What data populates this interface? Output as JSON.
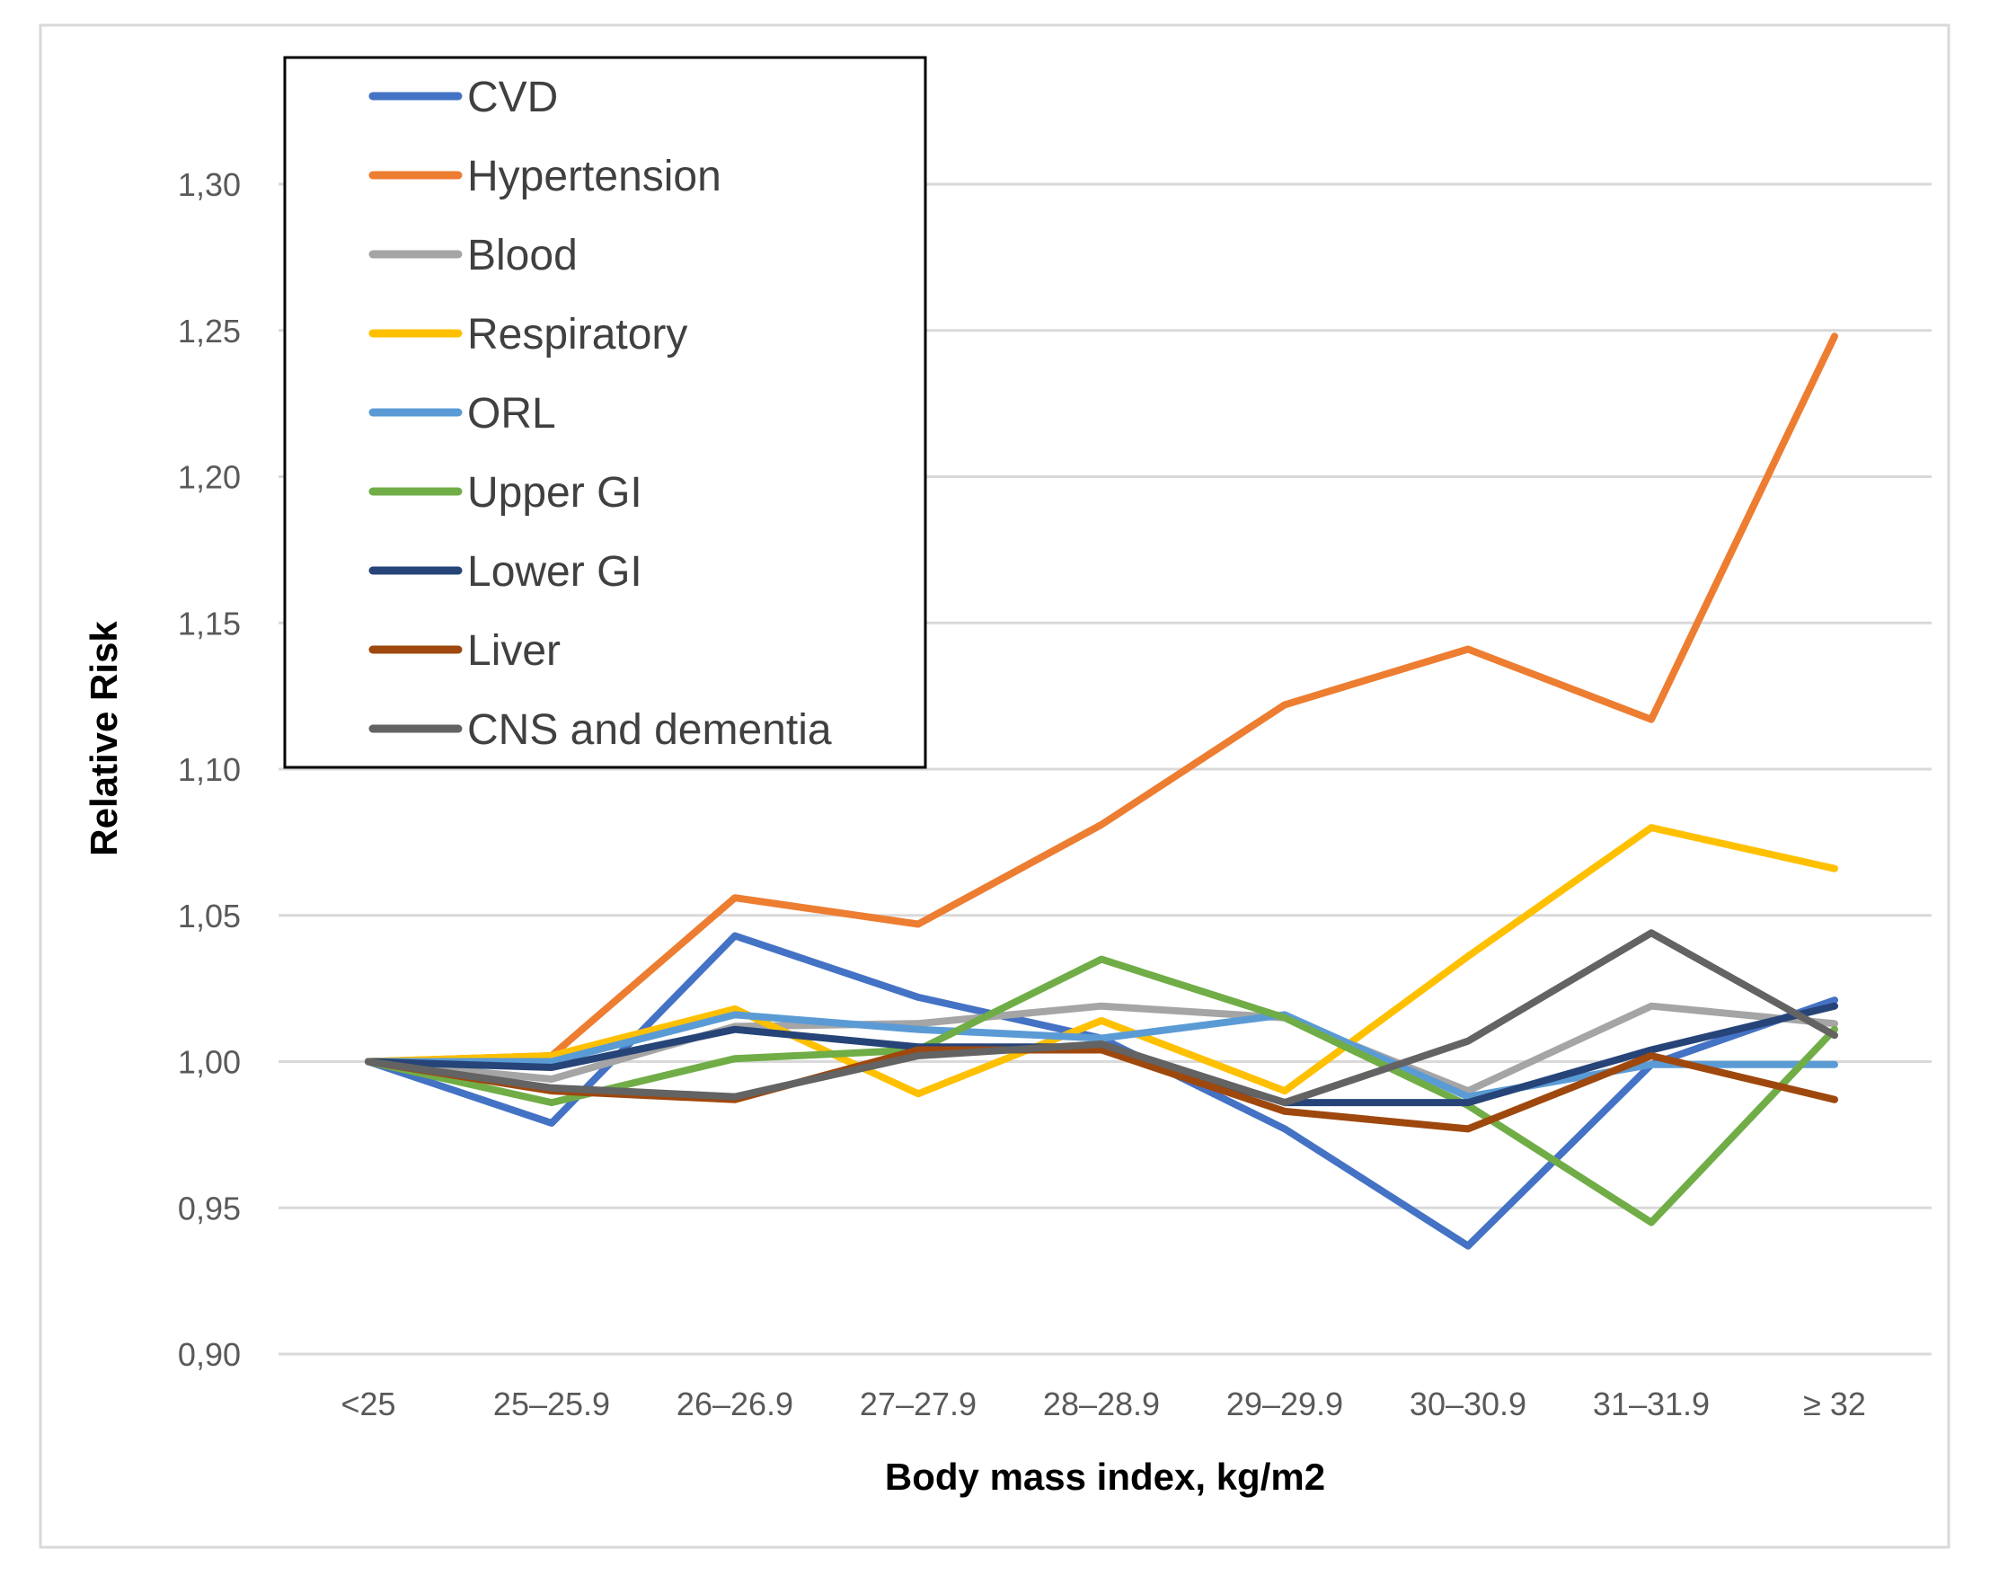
{
  "chart_data": {
    "type": "line",
    "title": "",
    "xlabel": "Body mass index, kg/m2",
    "ylabel": "Relative Risk",
    "ylim": [
      0.9,
      1.3
    ],
    "yticks": [
      "0,90",
      "0,95",
      "1,00",
      "1,05",
      "1,10",
      "1,15",
      "1,20",
      "1,25",
      "1,30"
    ],
    "ytick_values": [
      0.9,
      0.95,
      1.0,
      1.05,
      1.1,
      1.15,
      1.2,
      1.25,
      1.3
    ],
    "categories": [
      "<25",
      "25–25.9",
      "26–26.9",
      "27–27.9",
      "28–28.9",
      "29–29.9",
      "30–30.9",
      "31–31.9",
      "≥ 32"
    ],
    "grid": "horizontal",
    "legend": "top-left",
    "series": [
      {
        "name": "CVD",
        "color": "#4472C4",
        "values": [
          1.0,
          0.979,
          1.043,
          1.022,
          1.008,
          0.977,
          0.937,
          0.999,
          1.021
        ]
      },
      {
        "name": "Hypertension",
        "color": "#ED7D31",
        "values": [
          1.0,
          1.002,
          1.056,
          1.047,
          1.081,
          1.122,
          1.141,
          1.117,
          1.248
        ]
      },
      {
        "name": "Blood",
        "color": "#A5A5A5",
        "values": [
          1.0,
          0.994,
          1.012,
          1.013,
          1.019,
          1.015,
          0.99,
          1.019,
          1.013
        ]
      },
      {
        "name": "Respiratory",
        "color": "#FFC000",
        "values": [
          1.0,
          1.002,
          1.018,
          0.989,
          1.014,
          0.99,
          1.036,
          1.08,
          1.066
        ]
      },
      {
        "name": "ORL",
        "color": "#5B9BD5",
        "values": [
          1.0,
          1.0,
          1.016,
          1.011,
          1.008,
          1.016,
          0.988,
          0.999,
          0.999
        ]
      },
      {
        "name": "Upper GI",
        "color": "#70AD47",
        "values": [
          1.0,
          0.986,
          1.001,
          1.004,
          1.035,
          1.015,
          0.985,
          0.945,
          1.011
        ]
      },
      {
        "name": "Lower GI",
        "color": "#264478",
        "values": [
          1.0,
          0.998,
          1.011,
          1.005,
          1.005,
          0.986,
          0.986,
          1.004,
          1.019
        ]
      },
      {
        "name": "Liver",
        "color": "#9E480E",
        "values": [
          1.0,
          0.99,
          0.987,
          1.004,
          1.004,
          0.983,
          0.977,
          1.002,
          0.987
        ]
      },
      {
        "name": "CNS and dementia",
        "color": "#636363",
        "values": [
          1.0,
          0.991,
          0.988,
          1.002,
          1.006,
          0.986,
          1.007,
          1.044,
          1.009
        ]
      }
    ]
  }
}
